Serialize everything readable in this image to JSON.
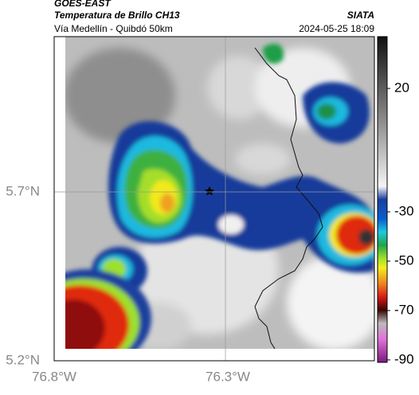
{
  "header": {
    "satellite": "GOES-EAST",
    "product": "Temperatura de Brillo CH13",
    "agency": "SIATA",
    "region": "Vía Medellín - Quibdó 50km",
    "timestamp": "2024-05-25 18:09"
  },
  "axes": {
    "lat_labels": [
      "5.7°N",
      "5.2°N"
    ],
    "lon_labels": [
      "76.8°W",
      "76.3°W"
    ]
  },
  "colorbar": {
    "range": [
      41,
      -91
    ],
    "ticks": [
      20,
      -30,
      -50,
      -70,
      -90
    ]
  }
}
